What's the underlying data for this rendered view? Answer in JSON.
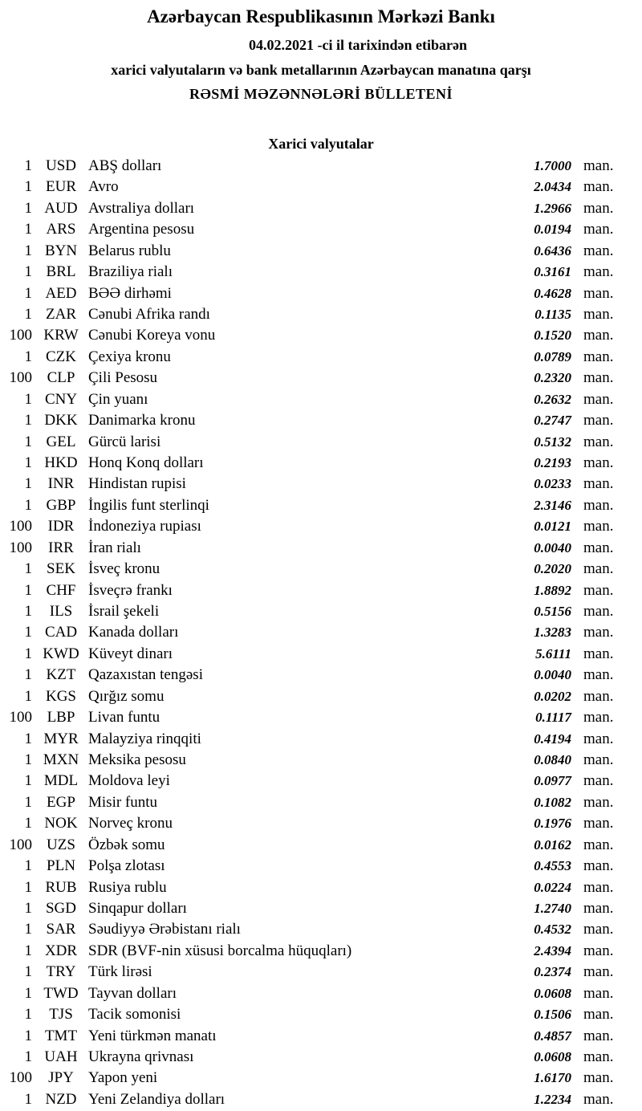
{
  "header": {
    "title": "Azərbaycan Respublikasının Mərkəzi Bankı",
    "date_line": "04.02.2021 -ci il tarixindən etibarən",
    "subtitle": "xarici valyutaların və bank metallarının Azərbaycan manatına qarşı",
    "bulletin": "RƏSMİ MƏZƏNNƏLƏRİ BÜLLETENİ"
  },
  "table": {
    "title": "Xarici valyutalar",
    "rows": [
      [
        "1",
        "USD",
        "ABŞ dolları",
        "1.7000",
        "man."
      ],
      [
        "1",
        "EUR",
        "Avro",
        "2.0434",
        "man."
      ],
      [
        "1",
        "AUD",
        "Avstraliya dolları",
        "1.2966",
        "man."
      ],
      [
        "1",
        "ARS",
        "Argentina pesosu",
        "0.0194",
        "man."
      ],
      [
        "1",
        "BYN",
        "Belarus rublu",
        "0.6436",
        "man."
      ],
      [
        "1",
        "BRL",
        "Braziliya rialı",
        "0.3161",
        "man."
      ],
      [
        "1",
        "AED",
        "BƏƏ dirhəmi",
        "0.4628",
        "man."
      ],
      [
        "1",
        "ZAR",
        "Cənubi Afrika randı",
        "0.1135",
        "man."
      ],
      [
        "100",
        "KRW",
        "Cənubi Koreya vonu",
        "0.1520",
        "man."
      ],
      [
        "1",
        "CZK",
        "Çexiya kronu",
        "0.0789",
        "man."
      ],
      [
        "100",
        "CLP",
        "Çili Pesosu",
        "0.2320",
        "man."
      ],
      [
        "1",
        "CNY",
        "Çin yuanı",
        "0.2632",
        "man."
      ],
      [
        "1",
        "DKK",
        "Danimarka kronu",
        "0.2747",
        "man."
      ],
      [
        "1",
        "GEL",
        "Gürcü larisi",
        "0.5132",
        "man."
      ],
      [
        "1",
        "HKD",
        "Honq Konq dolları",
        "0.2193",
        "man."
      ],
      [
        "1",
        "INR",
        "Hindistan rupisi",
        "0.0233",
        "man."
      ],
      [
        "1",
        "GBP",
        "İngilis funt sterlinqi",
        "2.3146",
        "man."
      ],
      [
        "100",
        "IDR",
        "İndoneziya rupiası",
        "0.0121",
        "man."
      ],
      [
        "100",
        "IRR",
        "İran rialı",
        "0.0040",
        "man."
      ],
      [
        "1",
        "SEK",
        "İsveç kronu",
        "0.2020",
        "man."
      ],
      [
        "1",
        "CHF",
        "İsveçrə frankı",
        "1.8892",
        "man."
      ],
      [
        "1",
        "ILS",
        "İsrail şekeli",
        "0.5156",
        "man."
      ],
      [
        "1",
        "CAD",
        "Kanada dolları",
        "1.3283",
        "man."
      ],
      [
        "1",
        "KWD",
        "Küveyt dinarı",
        "5.6111",
        "man."
      ],
      [
        "1",
        "KZT",
        "Qazaxıstan tengəsi",
        "0.0040",
        "man."
      ],
      [
        "1",
        "KGS",
        "Qırğız somu",
        "0.0202",
        "man."
      ],
      [
        "100",
        "LBP",
        "Livan funtu",
        "0.1117",
        "man."
      ],
      [
        "1",
        "MYR",
        "Malayziya rinqqiti",
        "0.4194",
        "man."
      ],
      [
        "1",
        "MXN",
        "Meksika pesosu",
        "0.0840",
        "man."
      ],
      [
        "1",
        "MDL",
        "Moldova leyi",
        "0.0977",
        "man."
      ],
      [
        "1",
        "EGP",
        "Misir funtu",
        "0.1082",
        "man."
      ],
      [
        "1",
        "NOK",
        "Norveç kronu",
        "0.1976",
        "man."
      ],
      [
        "100",
        "UZS",
        "Özbək somu",
        "0.0162",
        "man."
      ],
      [
        "1",
        "PLN",
        "Polşa zlotası",
        "0.4553",
        "man."
      ],
      [
        "1",
        "RUB",
        "Rusiya rublu",
        "0.0224",
        "man."
      ],
      [
        "1",
        "SGD",
        "Sinqapur dolları",
        "1.2740",
        "man."
      ],
      [
        "1",
        "SAR",
        "Səudiyyə Ərəbistanı rialı",
        "0.4532",
        "man."
      ],
      [
        "1",
        "XDR",
        "SDR (BVF-nin xüsusi borcalma hüquqları)",
        "2.4394",
        "man."
      ],
      [
        "1",
        "TRY",
        "Türk lirəsi",
        "0.2374",
        "man."
      ],
      [
        "1",
        "TWD",
        "Tayvan dolları",
        "0.0608",
        "man."
      ],
      [
        "1",
        "TJS",
        "Tacik somonisi",
        "0.1506",
        "man."
      ],
      [
        "1",
        "TMT",
        "Yeni türkmən manatı",
        "0.4857",
        "man."
      ],
      [
        "1",
        "UAH",
        "Ukrayna qrivnası",
        "0.0608",
        "man."
      ],
      [
        "100",
        "JPY",
        "Yapon yeni",
        "1.6170",
        "man."
      ],
      [
        "1",
        "NZD",
        "Yeni Zelandiya dolları",
        "1.2234",
        "man."
      ]
    ]
  }
}
